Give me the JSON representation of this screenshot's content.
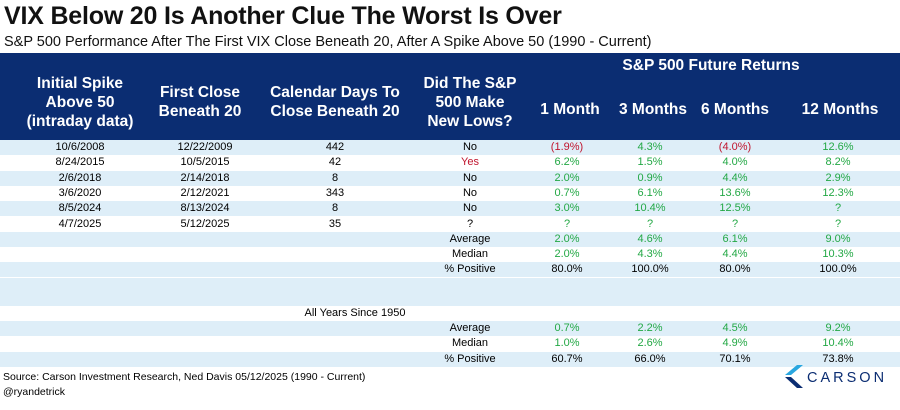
{
  "title": "VIX Below 20 Is Another Clue The Worst Is Over",
  "subtitle": "S&P 500 Performance After The First VIX Close Beneath 20, After A Spike Above 50 (1990 - Current)",
  "header": {
    "col1": [
      "Initial Spike",
      "Above 50",
      "(intraday data)"
    ],
    "col2": [
      "First Close",
      "Beneath 20"
    ],
    "col3": [
      "Calendar Days To",
      "Close Beneath 20"
    ],
    "col4": [
      "Did The S&P",
      "500 Make",
      "New Lows?"
    ],
    "group": "S&P 500 Future Returns",
    "returns": [
      "1 Month",
      "3 Months",
      "6 Months",
      "12 Months"
    ]
  },
  "chart_data": {
    "type": "table",
    "title": "VIX Below 20 Is Another Clue The Worst Is Over",
    "subtitle": "S&P 500 Performance After The First VIX Close Beneath 20, After A Spike Above 50 (1990 - Current)",
    "columns": [
      "Initial Spike Above 50 (intraday data)",
      "First Close Beneath 20",
      "Calendar Days To Close Beneath 20",
      "Did The S&P 500 Make New Lows?",
      "1 Month",
      "3 Months",
      "6 Months",
      "12 Months"
    ],
    "rows": [
      {
        "spike": "10/6/2008",
        "close": "12/22/2009",
        "days": "442",
        "lows": "No",
        "r": [
          "(1.9%)",
          "4.3%",
          "(4.0%)",
          "12.6%"
        ]
      },
      {
        "spike": "8/24/2015",
        "close": "10/5/2015",
        "days": "42",
        "lows": "Yes",
        "r": [
          "6.2%",
          "1.5%",
          "4.0%",
          "8.2%"
        ]
      },
      {
        "spike": "2/6/2018",
        "close": "2/14/2018",
        "days": "8",
        "lows": "No",
        "r": [
          "2.0%",
          "0.9%",
          "4.4%",
          "2.9%"
        ]
      },
      {
        "spike": "3/6/2020",
        "close": "2/12/2021",
        "days": "343",
        "lows": "No",
        "r": [
          "0.7%",
          "6.1%",
          "13.6%",
          "12.3%"
        ]
      },
      {
        "spike": "8/5/2024",
        "close": "8/13/2024",
        "days": "8",
        "lows": "No",
        "r": [
          "3.0%",
          "10.4%",
          "12.5%",
          "?"
        ]
      },
      {
        "spike": "4/7/2025",
        "close": "5/12/2025",
        "days": "35",
        "lows": "?",
        "r": [
          "?",
          "?",
          "?",
          "?"
        ]
      }
    ],
    "summary": [
      {
        "label": "Average",
        "r": [
          "2.0%",
          "4.6%",
          "6.1%",
          "9.0%"
        ]
      },
      {
        "label": "Median",
        "r": [
          "2.0%",
          "4.3%",
          "4.4%",
          "10.3%"
        ]
      },
      {
        "label": "% Positive",
        "r": [
          "80.0%",
          "100.0%",
          "80.0%",
          "100.0%"
        ]
      }
    ],
    "since1950_label": "All Years Since 1950",
    "since1950": [
      {
        "label": "Average",
        "r": [
          "0.7%",
          "2.2%",
          "4.5%",
          "9.2%"
        ]
      },
      {
        "label": "Median",
        "r": [
          "1.0%",
          "2.6%",
          "4.9%",
          "10.4%"
        ]
      },
      {
        "label": "% Positive",
        "r": [
          "60.7%",
          "66.0%",
          "70.1%",
          "73.8%"
        ]
      }
    ]
  },
  "footer": {
    "source": "Source: Carson Investment Research, Ned Davis 05/12/2025 (1990 - Current)",
    "handle": "@ryandetrick",
    "logo_text": "CARSON"
  },
  "colors": {
    "header_bg": "#0b2d72",
    "stripe": "#deeef8",
    "positive": "#23a845",
    "negative": "#c0152e",
    "logo_light": "#2aa7e0",
    "logo_dark": "#0b2d72"
  },
  "icons": {
    "logo": "carson-chevron-logo"
  }
}
